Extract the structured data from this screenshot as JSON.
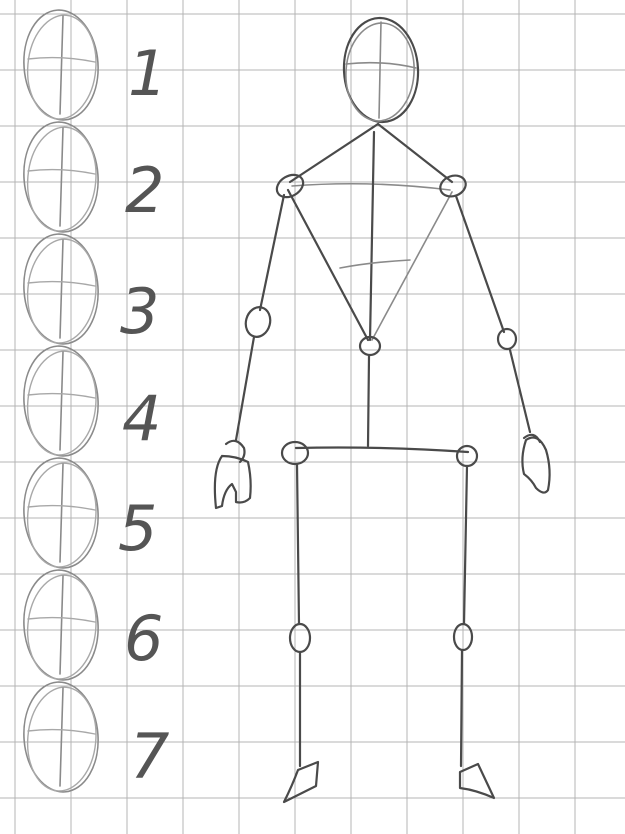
{
  "heads_scale": {
    "labels": [
      "1",
      "2",
      "3",
      "4",
      "5",
      "6",
      "7"
    ]
  },
  "colors": {
    "background": "#ffffff",
    "grid": "#b4b4b4",
    "pencil": "#4a4a4a"
  },
  "figure": {
    "parts": [
      "head",
      "torso",
      "arms",
      "pelvis",
      "legs",
      "hands",
      "feet"
    ]
  }
}
